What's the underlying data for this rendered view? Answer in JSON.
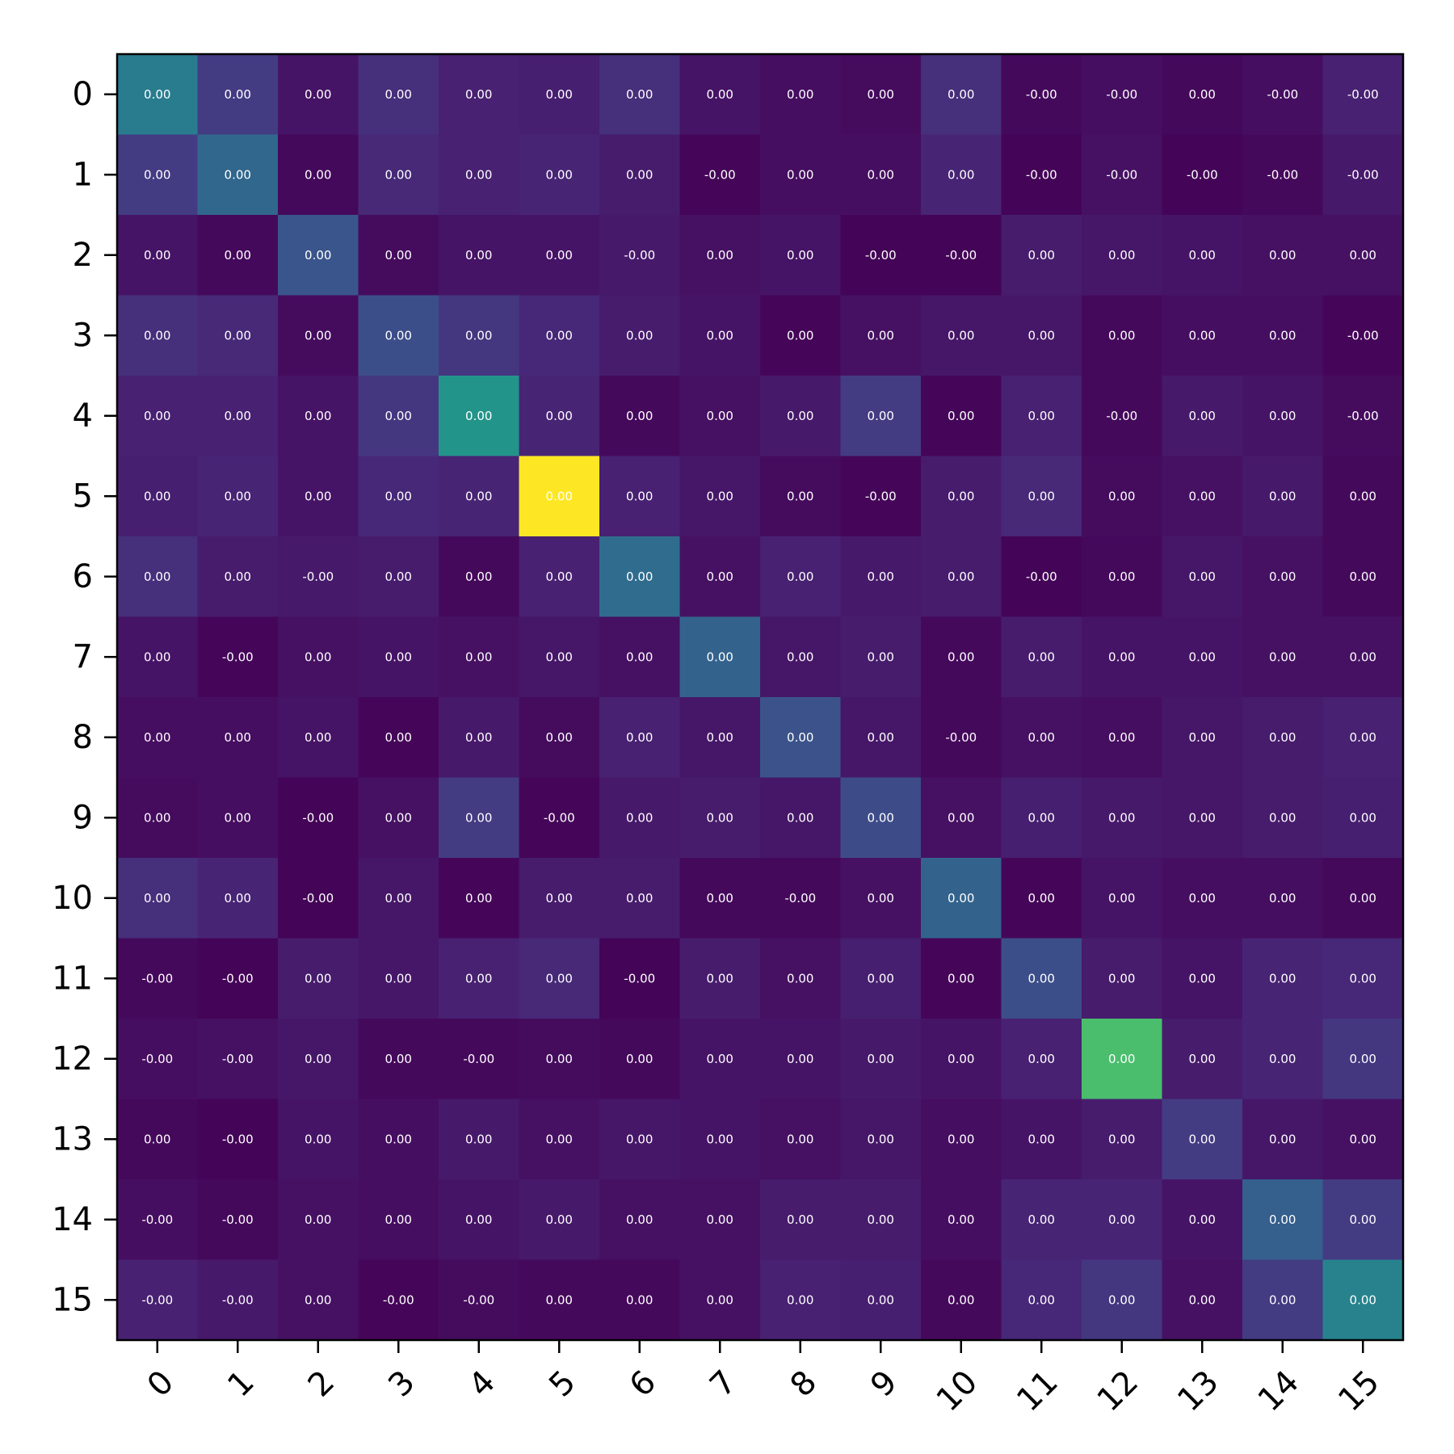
{
  "chart_data": {
    "type": "heatmap",
    "title": "",
    "xlabel": "",
    "ylabel": "",
    "colormap": "viridis",
    "x_categories": [
      "0",
      "1",
      "2",
      "3",
      "4",
      "5",
      "6",
      "7",
      "8",
      "9",
      "10",
      "11",
      "12",
      "13",
      "14",
      "15"
    ],
    "y_categories": [
      "0",
      "1",
      "2",
      "3",
      "4",
      "5",
      "6",
      "7",
      "8",
      "9",
      "10",
      "11",
      "12",
      "13",
      "14",
      "15"
    ],
    "x_tick_rotation_deg": 45,
    "grid": false,
    "legend": "none",
    "intensity_range": [
      0,
      1
    ],
    "intensity": [
      [
        0.52,
        0.22,
        0.07,
        0.17,
        0.12,
        0.11,
        0.17,
        0.07,
        0.05,
        0.04,
        0.17,
        0.03,
        0.05,
        0.03,
        0.05,
        0.12
      ],
      [
        0.22,
        0.42,
        0.03,
        0.15,
        0.12,
        0.13,
        0.1,
        0.02,
        0.05,
        0.05,
        0.13,
        0.01,
        0.06,
        0.01,
        0.03,
        0.09
      ],
      [
        0.07,
        0.03,
        0.33,
        0.04,
        0.07,
        0.07,
        0.09,
        0.06,
        0.07,
        0.01,
        0.01,
        0.1,
        0.08,
        0.07,
        0.06,
        0.06
      ],
      [
        0.17,
        0.15,
        0.04,
        0.3,
        0.2,
        0.14,
        0.1,
        0.07,
        0.02,
        0.06,
        0.08,
        0.08,
        0.03,
        0.05,
        0.05,
        0.02
      ],
      [
        0.12,
        0.12,
        0.07,
        0.2,
        0.64,
        0.13,
        0.03,
        0.06,
        0.09,
        0.22,
        0.02,
        0.12,
        0.03,
        0.09,
        0.07,
        0.04
      ],
      [
        0.11,
        0.13,
        0.07,
        0.14,
        0.13,
        1.0,
        0.12,
        0.08,
        0.04,
        0.02,
        0.1,
        0.15,
        0.04,
        0.06,
        0.09,
        0.03
      ],
      [
        0.17,
        0.1,
        0.09,
        0.1,
        0.03,
        0.12,
        0.44,
        0.06,
        0.12,
        0.09,
        0.1,
        0.01,
        0.03,
        0.08,
        0.06,
        0.03
      ],
      [
        0.07,
        0.02,
        0.06,
        0.07,
        0.06,
        0.08,
        0.06,
        0.4,
        0.08,
        0.1,
        0.03,
        0.1,
        0.07,
        0.07,
        0.06,
        0.06
      ],
      [
        0.05,
        0.05,
        0.07,
        0.02,
        0.09,
        0.04,
        0.12,
        0.08,
        0.32,
        0.08,
        0.03,
        0.06,
        0.05,
        0.08,
        0.1,
        0.12
      ],
      [
        0.04,
        0.05,
        0.01,
        0.06,
        0.22,
        0.02,
        0.09,
        0.1,
        0.08,
        0.29,
        0.06,
        0.11,
        0.09,
        0.08,
        0.1,
        0.11
      ],
      [
        0.17,
        0.13,
        0.01,
        0.08,
        0.02,
        0.1,
        0.1,
        0.03,
        0.03,
        0.06,
        0.4,
        0.02,
        0.07,
        0.05,
        0.05,
        0.03
      ],
      [
        0.03,
        0.01,
        0.1,
        0.08,
        0.12,
        0.15,
        0.01,
        0.1,
        0.06,
        0.11,
        0.02,
        0.3,
        0.1,
        0.07,
        0.13,
        0.14
      ],
      [
        0.05,
        0.06,
        0.08,
        0.03,
        0.03,
        0.04,
        0.03,
        0.07,
        0.07,
        0.09,
        0.07,
        0.12,
        0.78,
        0.1,
        0.13,
        0.2
      ],
      [
        0.03,
        0.01,
        0.07,
        0.05,
        0.09,
        0.06,
        0.08,
        0.07,
        0.06,
        0.08,
        0.05,
        0.07,
        0.1,
        0.22,
        0.08,
        0.06
      ],
      [
        0.05,
        0.03,
        0.06,
        0.05,
        0.07,
        0.09,
        0.06,
        0.06,
        0.1,
        0.1,
        0.05,
        0.13,
        0.13,
        0.07,
        0.38,
        0.22
      ],
      [
        0.12,
        0.09,
        0.06,
        0.02,
        0.04,
        0.03,
        0.03,
        0.06,
        0.12,
        0.11,
        0.03,
        0.14,
        0.2,
        0.06,
        0.22,
        0.55
      ]
    ],
    "cell_labels": [
      [
        "0.00",
        "0.00",
        "0.00",
        "0.00",
        "0.00",
        "0.00",
        "0.00",
        "0.00",
        "0.00",
        "0.00",
        "0.00",
        "-0.00",
        "-0.00",
        "0.00",
        "-0.00",
        "-0.00"
      ],
      [
        "0.00",
        "0.00",
        "0.00",
        "0.00",
        "0.00",
        "0.00",
        "0.00",
        "-0.00",
        "0.00",
        "0.00",
        "0.00",
        "-0.00",
        "-0.00",
        "-0.00",
        "-0.00",
        "-0.00"
      ],
      [
        "0.00",
        "0.00",
        "0.00",
        "0.00",
        "0.00",
        "0.00",
        "-0.00",
        "0.00",
        "0.00",
        "-0.00",
        "-0.00",
        "0.00",
        "0.00",
        "0.00",
        "0.00",
        "0.00"
      ],
      [
        "0.00",
        "0.00",
        "0.00",
        "0.00",
        "0.00",
        "0.00",
        "0.00",
        "0.00",
        "0.00",
        "0.00",
        "0.00",
        "0.00",
        "0.00",
        "0.00",
        "0.00",
        "-0.00"
      ],
      [
        "0.00",
        "0.00",
        "0.00",
        "0.00",
        "0.00",
        "0.00",
        "0.00",
        "0.00",
        "0.00",
        "0.00",
        "0.00",
        "0.00",
        "-0.00",
        "0.00",
        "0.00",
        "-0.00"
      ],
      [
        "0.00",
        "0.00",
        "0.00",
        "0.00",
        "0.00",
        "0.00",
        "0.00",
        "0.00",
        "0.00",
        "-0.00",
        "0.00",
        "0.00",
        "0.00",
        "0.00",
        "0.00",
        "0.00"
      ],
      [
        "0.00",
        "0.00",
        "-0.00",
        "0.00",
        "0.00",
        "0.00",
        "0.00",
        "0.00",
        "0.00",
        "0.00",
        "0.00",
        "-0.00",
        "0.00",
        "0.00",
        "0.00",
        "0.00"
      ],
      [
        "0.00",
        "-0.00",
        "0.00",
        "0.00",
        "0.00",
        "0.00",
        "0.00",
        "0.00",
        "0.00",
        "0.00",
        "0.00",
        "0.00",
        "0.00",
        "0.00",
        "0.00",
        "0.00"
      ],
      [
        "0.00",
        "0.00",
        "0.00",
        "0.00",
        "0.00",
        "0.00",
        "0.00",
        "0.00",
        "0.00",
        "0.00",
        "-0.00",
        "0.00",
        "0.00",
        "0.00",
        "0.00",
        "0.00"
      ],
      [
        "0.00",
        "0.00",
        "-0.00",
        "0.00",
        "0.00",
        "-0.00",
        "0.00",
        "0.00",
        "0.00",
        "0.00",
        "0.00",
        "0.00",
        "0.00",
        "0.00",
        "0.00",
        "0.00"
      ],
      [
        "0.00",
        "0.00",
        "-0.00",
        "0.00",
        "0.00",
        "0.00",
        "0.00",
        "0.00",
        "-0.00",
        "0.00",
        "0.00",
        "0.00",
        "0.00",
        "0.00",
        "0.00",
        "0.00"
      ],
      [
        "-0.00",
        "-0.00",
        "0.00",
        "0.00",
        "0.00",
        "0.00",
        "-0.00",
        "0.00",
        "0.00",
        "0.00",
        "0.00",
        "0.00",
        "0.00",
        "0.00",
        "0.00",
        "0.00"
      ],
      [
        "-0.00",
        "-0.00",
        "0.00",
        "0.00",
        "-0.00",
        "0.00",
        "0.00",
        "0.00",
        "0.00",
        "0.00",
        "0.00",
        "0.00",
        "0.00",
        "0.00",
        "0.00",
        "0.00"
      ],
      [
        "0.00",
        "-0.00",
        "0.00",
        "0.00",
        "0.00",
        "0.00",
        "0.00",
        "0.00",
        "0.00",
        "0.00",
        "0.00",
        "0.00",
        "0.00",
        "0.00",
        "0.00",
        "0.00"
      ],
      [
        "-0.00",
        "-0.00",
        "0.00",
        "0.00",
        "0.00",
        "0.00",
        "0.00",
        "0.00",
        "0.00",
        "0.00",
        "0.00",
        "0.00",
        "0.00",
        "0.00",
        "0.00",
        "0.00"
      ],
      [
        "-0.00",
        "-0.00",
        "0.00",
        "-0.00",
        "-0.00",
        "0.00",
        "0.00",
        "0.00",
        "0.00",
        "0.00",
        "0.00",
        "0.00",
        "0.00",
        "0.00",
        "0.00",
        "0.00"
      ]
    ]
  }
}
